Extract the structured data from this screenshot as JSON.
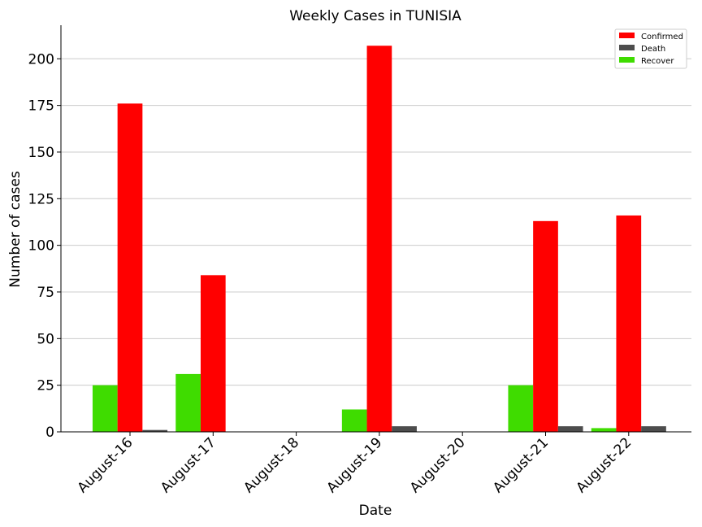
{
  "chart_data": {
    "type": "bar",
    "title": "Weekly Cases in TUNISIA",
    "xlabel": "Date",
    "ylabel": "Number of cases",
    "categories": [
      "August-16",
      "August-17",
      "August-18",
      "August-19",
      "August-20",
      "August-21",
      "August-22"
    ],
    "ylim": [
      0,
      218
    ],
    "yticks": [
      0,
      25,
      50,
      75,
      100,
      125,
      150,
      175,
      200
    ],
    "grid": "horizontal",
    "legend_position": "top-right",
    "series_order_in_group": [
      "Recover",
      "Confirmed",
      "Death"
    ],
    "series": [
      {
        "name": "Confirmed",
        "color": "#ff0000",
        "values": [
          176,
          84,
          0,
          207,
          0,
          113,
          116
        ]
      },
      {
        "name": "Death",
        "color": "#4d4d4d",
        "values": [
          1,
          0,
          0,
          3,
          0,
          3,
          3
        ]
      },
      {
        "name": "Recover",
        "color": "#3fdc00",
        "values": [
          25,
          31,
          0,
          12,
          0,
          25,
          2
        ]
      }
    ]
  }
}
